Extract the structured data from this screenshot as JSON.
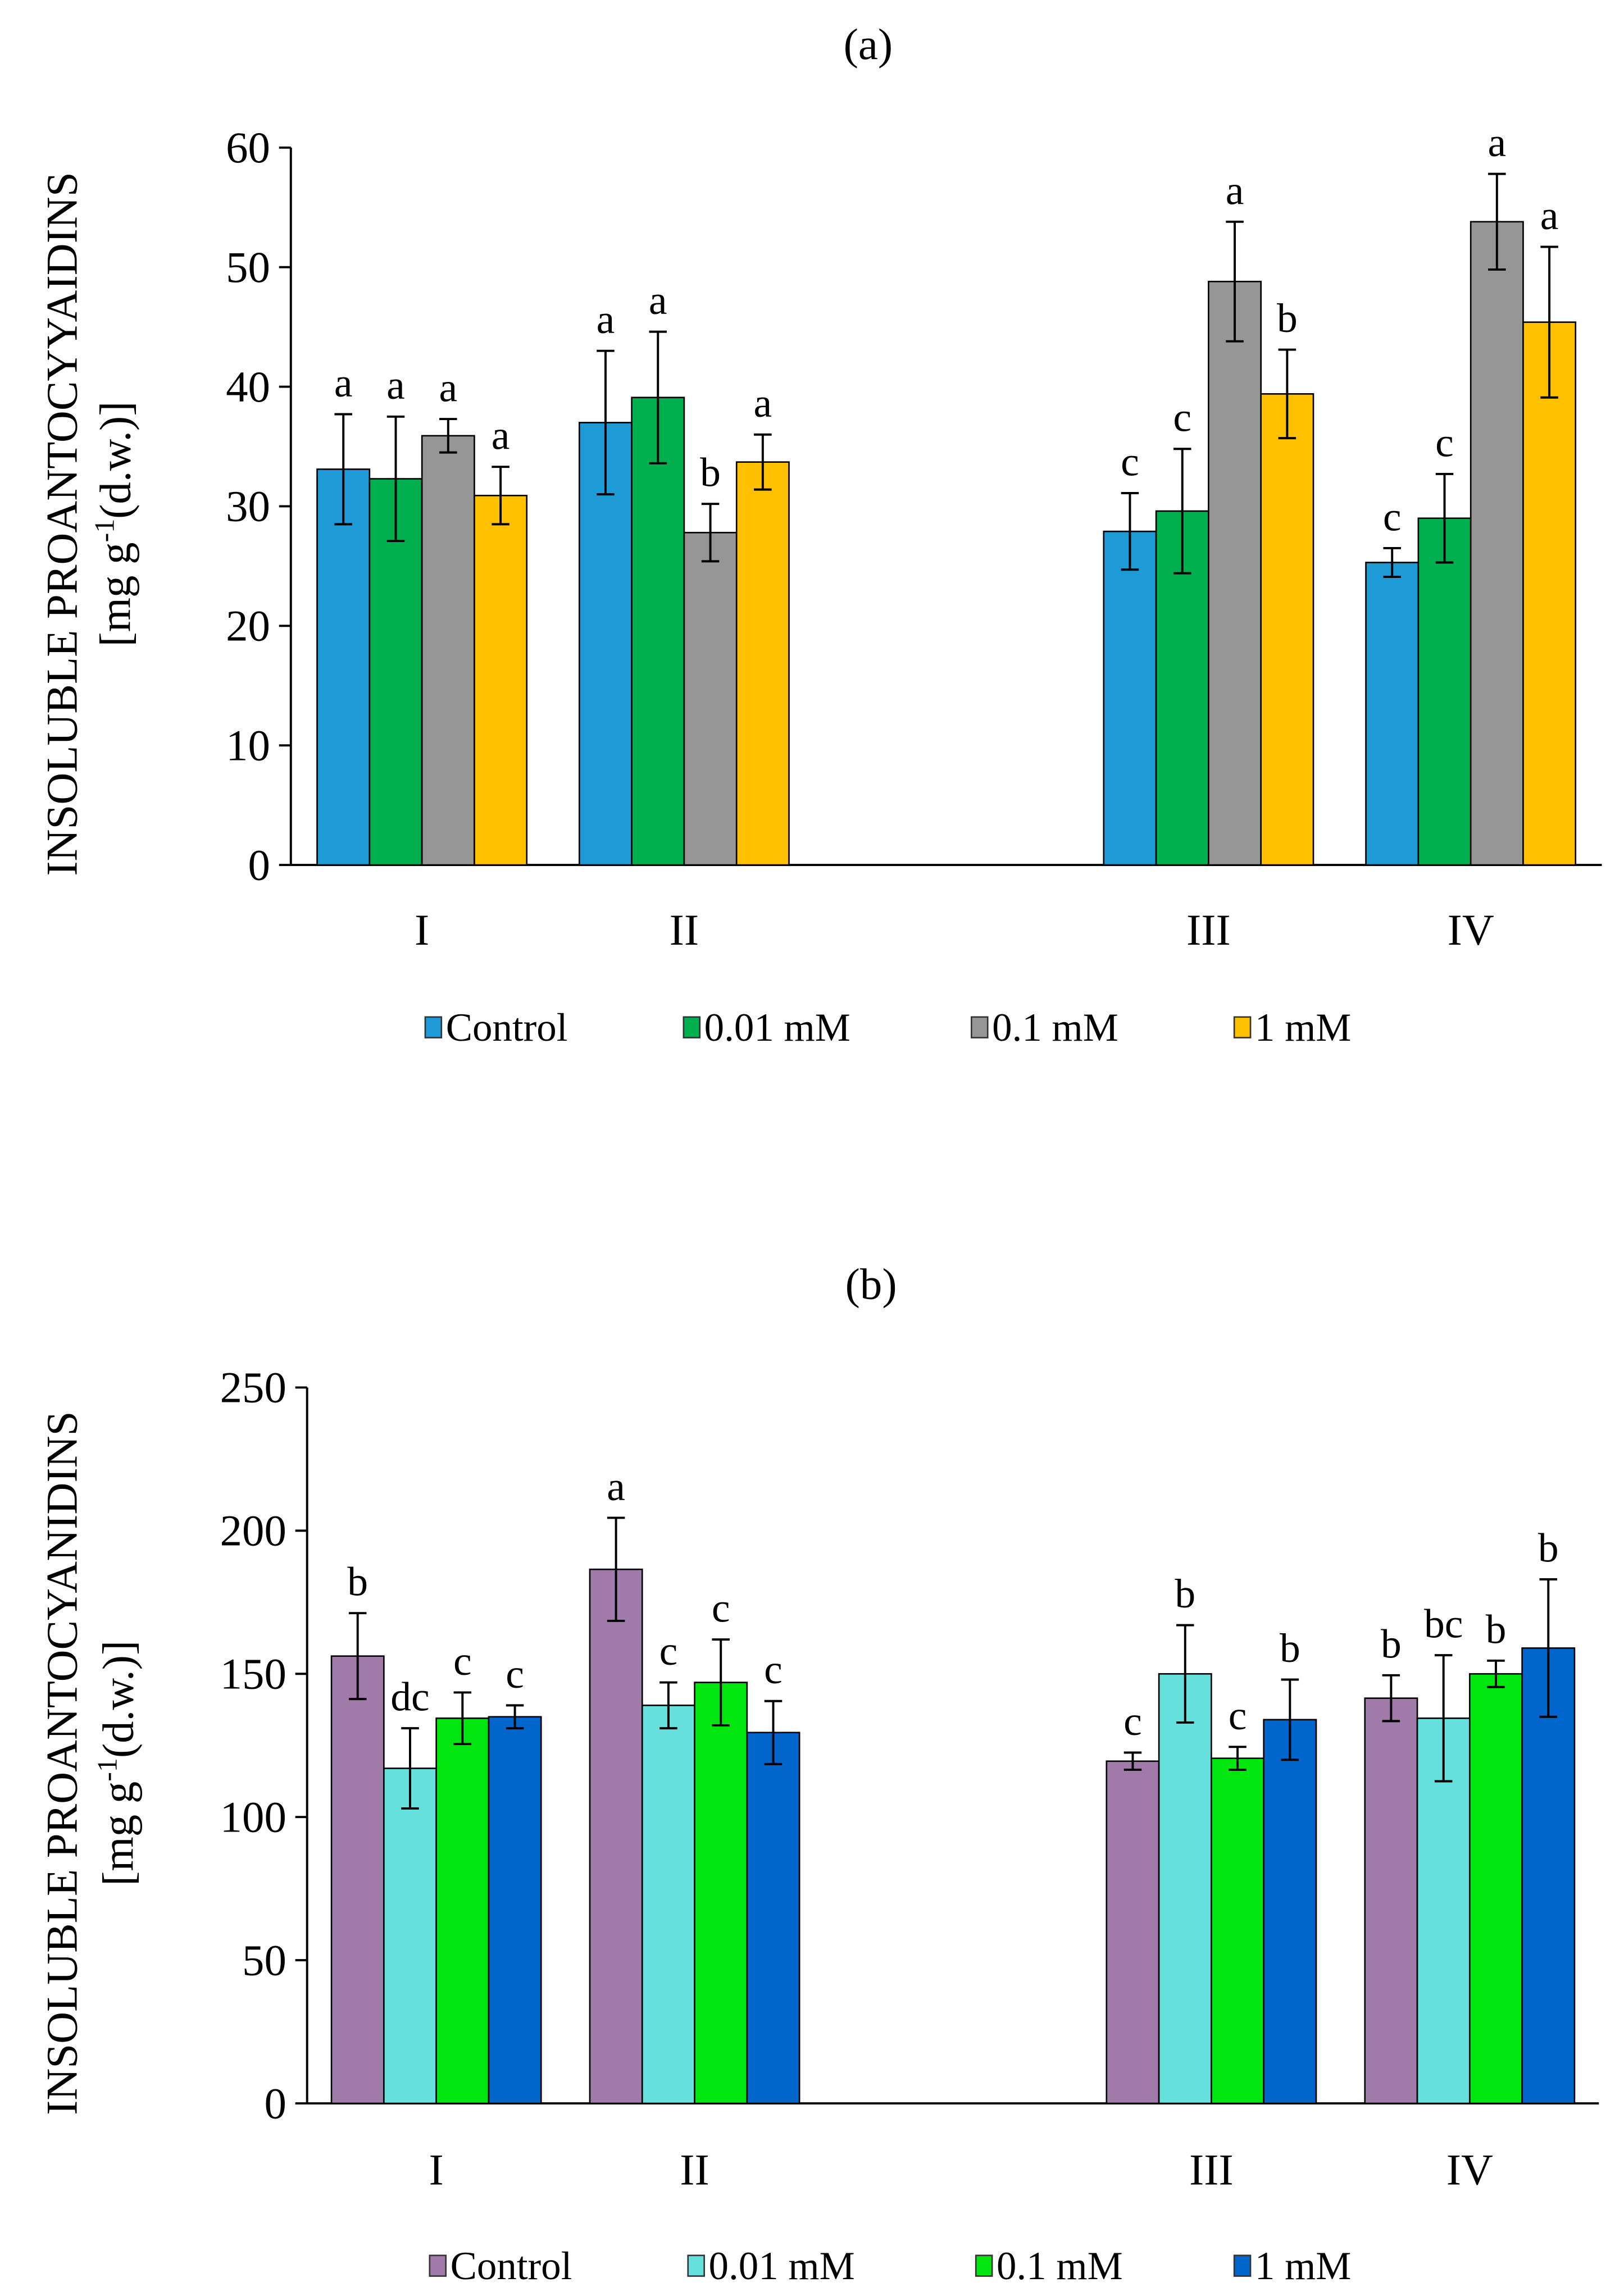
{
  "chart_data": [
    {
      "type": "bar",
      "title": "(a)",
      "ylabel": "INSOLUBLE PROANTOCYYAIDINS",
      "ylabel_unit_prefix": "[mg g",
      "ylabel_unit_sup": "-1",
      "ylabel_unit_suffix": "(d.w.)]",
      "xlabel": "",
      "ylim": [
        0,
        60
      ],
      "yticks": [
        0,
        10,
        20,
        30,
        40,
        50,
        60
      ],
      "categories": [
        "I",
        "II",
        "",
        "III",
        "IV"
      ],
      "grid": false,
      "legend_position": "bottom",
      "series": [
        {
          "name": "Control",
          "color": "#1e9ad6",
          "values": [
            33.1,
            37.0,
            null,
            27.9,
            25.3
          ],
          "errors": [
            4.6,
            6.0,
            null,
            3.2,
            1.2
          ],
          "letters": [
            "a",
            "a",
            null,
            "c",
            "c"
          ]
        },
        {
          "name": "0.01 mM",
          "color": "#00b04f",
          "values": [
            32.3,
            39.1,
            null,
            29.6,
            29.0
          ],
          "errors": [
            5.2,
            5.5,
            null,
            5.2,
            3.7
          ],
          "letters": [
            "a",
            "a",
            null,
            "c",
            "c"
          ]
        },
        {
          "name": "0.1 mM",
          "color": "#969696",
          "values": [
            35.9,
            27.8,
            null,
            48.8,
            53.8
          ],
          "errors": [
            1.4,
            2.4,
            null,
            5.0,
            4.0
          ],
          "letters": [
            "a",
            "b",
            null,
            "a",
            "a"
          ]
        },
        {
          "name": "1 mM",
          "color": "#ffc000",
          "values": [
            30.9,
            33.7,
            null,
            39.4,
            45.4
          ],
          "errors": [
            2.4,
            2.3,
            null,
            3.7,
            6.3
          ],
          "letters": [
            "a",
            "a",
            null,
            "b",
            "a"
          ]
        }
      ]
    },
    {
      "type": "bar",
      "title": "(b)",
      "ylabel": "INSOLUBLE PROANTOCYANIDINS",
      "ylabel_unit_prefix": "[mg g",
      "ylabel_unit_sup": "-1",
      "ylabel_unit_suffix": "(d.w.)]",
      "xlabel": "",
      "ylim": [
        0,
        250
      ],
      "yticks": [
        0,
        50,
        100,
        150,
        200,
        250
      ],
      "categories": [
        "I",
        "II",
        "",
        "III",
        "IV"
      ],
      "grid": false,
      "legend_position": "bottom",
      "series": [
        {
          "name": "Control",
          "color": "#a07aa8",
          "values": [
            156.2,
            186.5,
            null,
            119.5,
            141.5
          ],
          "errors": [
            15,
            18,
            null,
            3,
            8
          ],
          "letters": [
            "b",
            "a",
            null,
            "c",
            "b"
          ]
        },
        {
          "name": "0.01 mM",
          "color": "#66e0dc",
          "values": [
            117,
            139,
            null,
            150,
            134.5
          ],
          "errors": [
            14,
            8,
            null,
            17,
            22
          ],
          "letters": [
            "dc",
            "c",
            null,
            "b",
            "bc"
          ]
        },
        {
          "name": "0.1 mM",
          "color": "#00e60e",
          "values": [
            134.5,
            147,
            null,
            120.5,
            150
          ],
          "errors": [
            9,
            15,
            null,
            4,
            4.6
          ],
          "letters": [
            "c",
            "c",
            null,
            "c",
            "b"
          ]
        },
        {
          "name": "1 mM",
          "color": "#0066cc",
          "values": [
            135,
            129.5,
            null,
            134,
            159
          ],
          "errors": [
            4,
            11,
            null,
            14,
            24
          ],
          "letters": [
            "c",
            "c",
            null,
            "b",
            "b"
          ]
        }
      ]
    }
  ]
}
